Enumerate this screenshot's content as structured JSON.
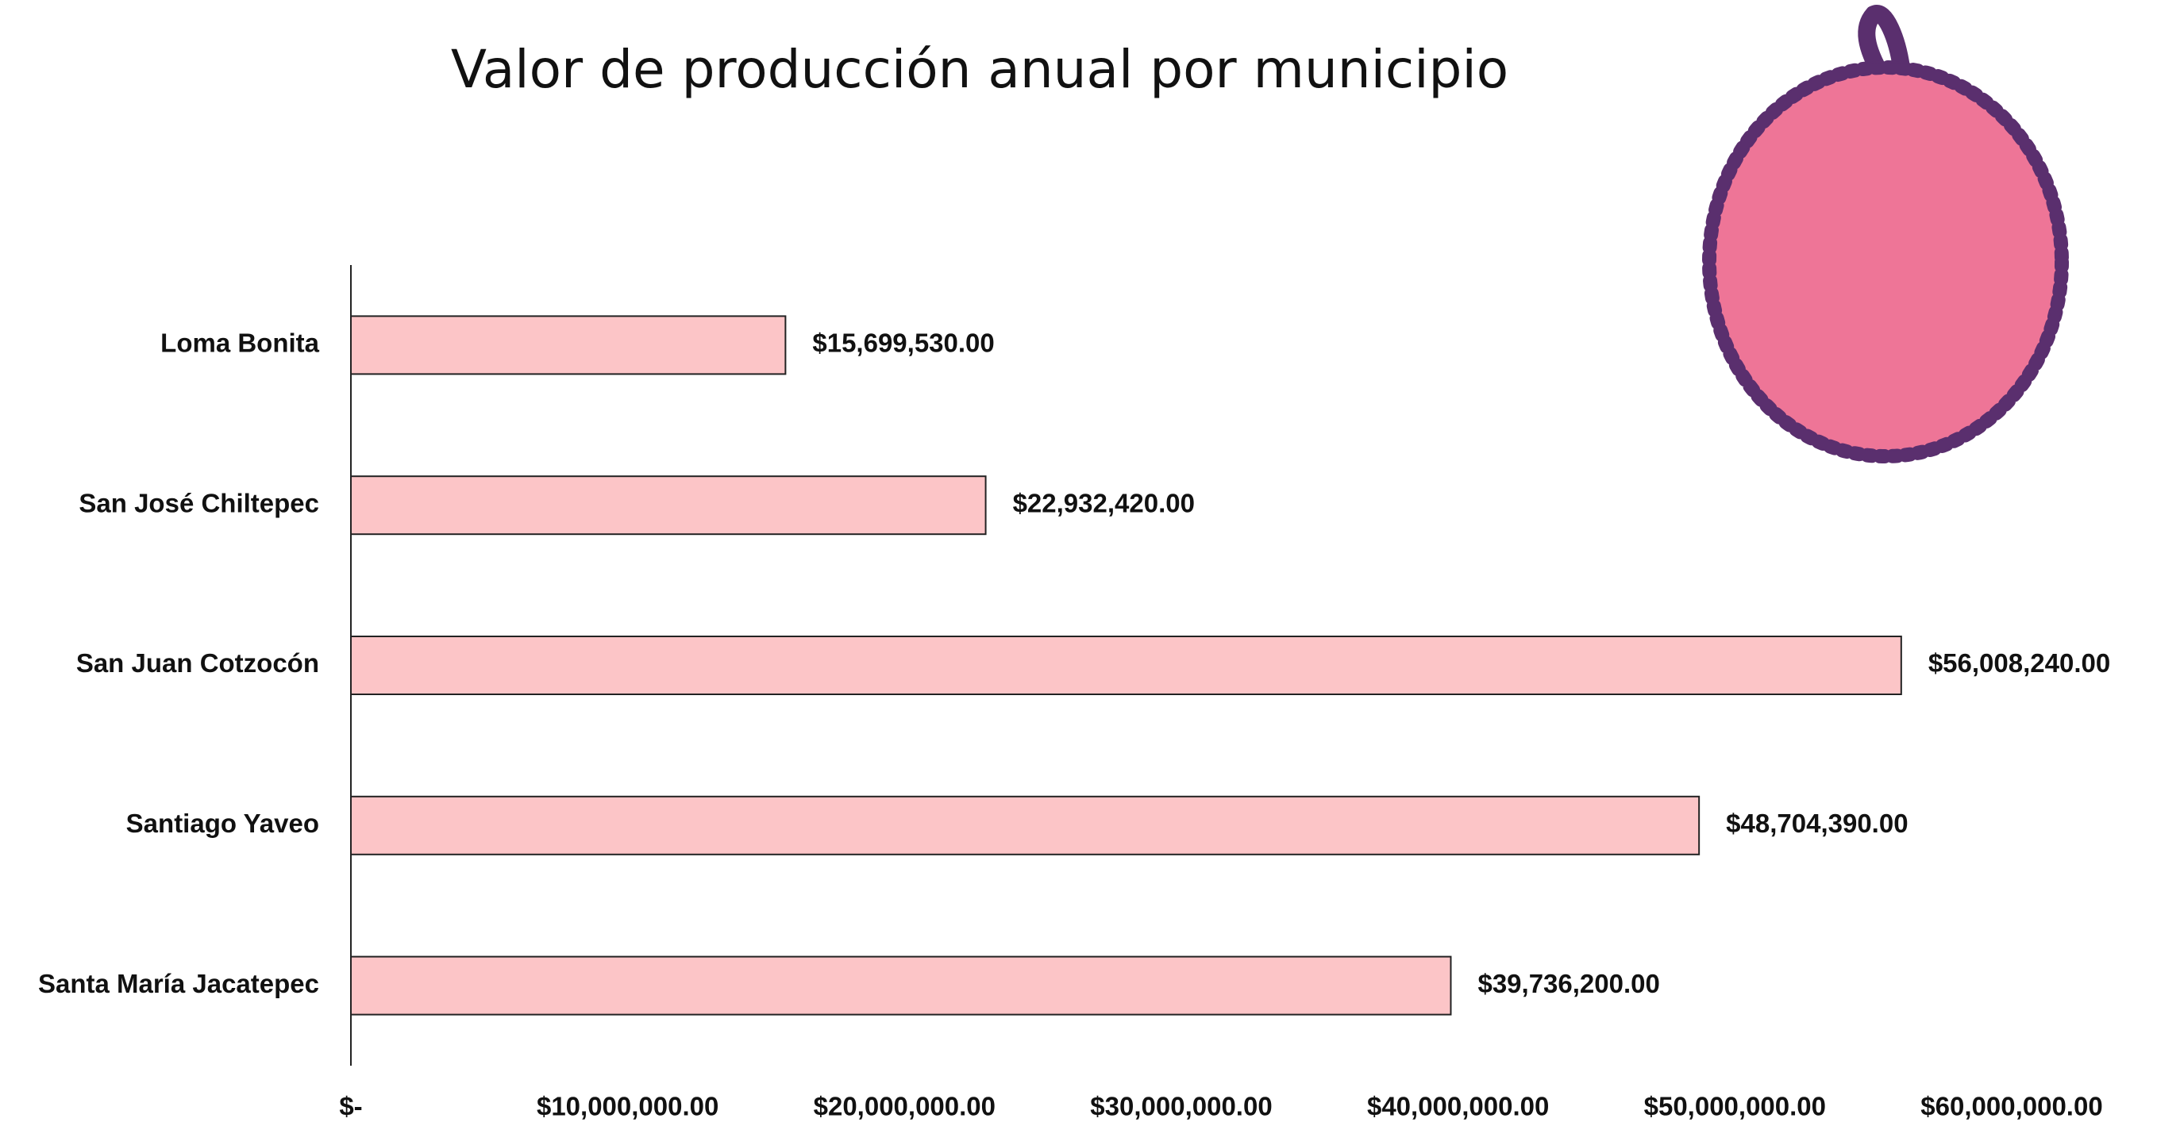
{
  "chart_data": {
    "type": "bar",
    "orientation": "horizontal",
    "title": "Valor de producción anual por municipio",
    "categories": [
      "Loma Bonita",
      "San José Chiltepec",
      "San Juan Cotzocón",
      "Santiago Yaveo",
      "Santa María Jacatepec"
    ],
    "values": [
      15699530,
      22932420,
      56008240,
      48704390,
      39736200
    ],
    "value_labels": [
      "$15,699,530.00",
      "$22,932,420.00",
      "$56,008,240.00",
      "$48,704,390.00",
      "$39,736,200.00"
    ],
    "color": "#fcc5c7",
    "xlim": [
      0,
      60000000
    ],
    "xticks": [
      {
        "value": 0,
        "label": "$-"
      },
      {
        "value": 10000000,
        "label": "$10,000,000.00"
      },
      {
        "value": 20000000,
        "label": "$20,000,000.00"
      },
      {
        "value": 30000000,
        "label": "$30,000,000.00"
      },
      {
        "value": 40000000,
        "label": "$40,000,000.00"
      },
      {
        "value": 50000000,
        "label": "$50,000,000.00"
      },
      {
        "value": 60000000,
        "label": "$60,000,000.00"
      }
    ],
    "grid": false
  }
}
